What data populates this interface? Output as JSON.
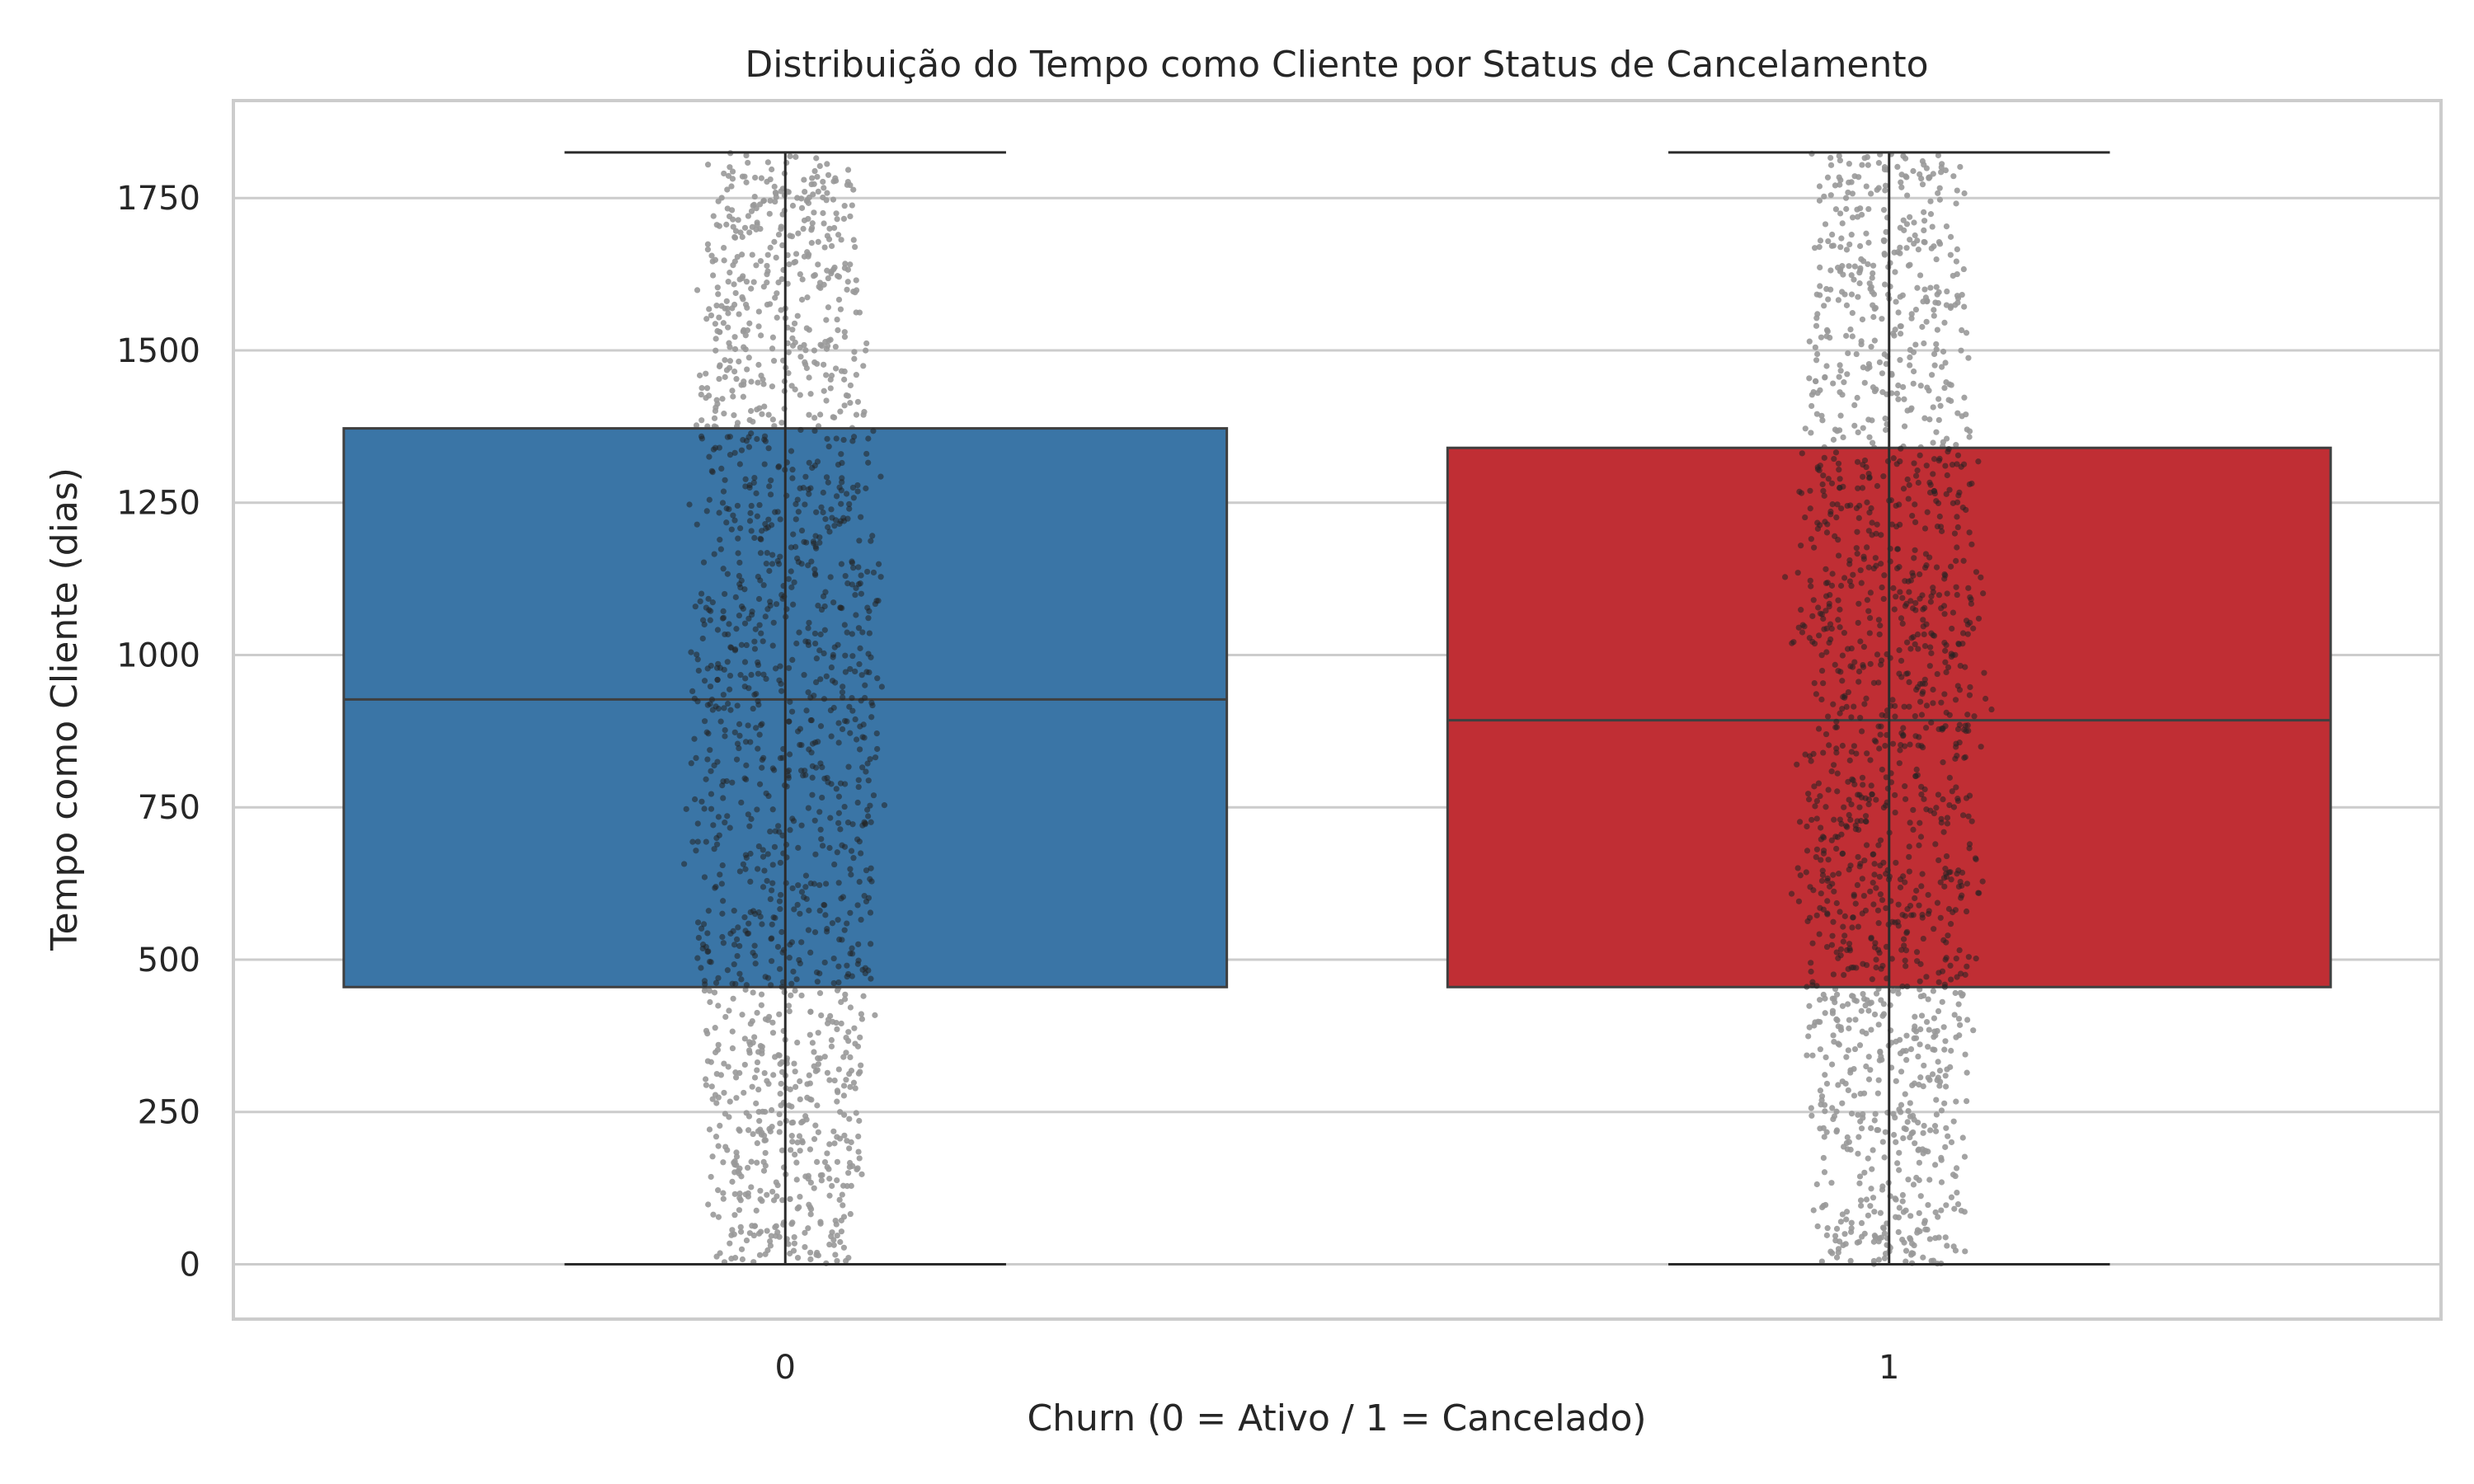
{
  "chart_data": {
    "type": "boxplot",
    "title": "Distribuição do Tempo como Cliente por Status de Cancelamento",
    "xlabel": "Churn (0 = Ativo / 1 = Cancelado)",
    "ylabel": "Tempo como Cliente (dias)",
    "categories": [
      "0",
      "1"
    ],
    "ylim": [
      -90,
      1910
    ],
    "yticks": [
      0,
      250,
      500,
      750,
      1000,
      1250,
      1500,
      1750
    ],
    "grid": true,
    "series": [
      {
        "category": "0",
        "color": "#3a75a6",
        "min": 0,
        "q1": 455,
        "median": 927,
        "q3": 1372,
        "max": 1825
      },
      {
        "category": "1",
        "color": "#c02e34",
        "min": 0,
        "q1": 455,
        "median": 893,
        "q3": 1340,
        "max": 1825
      }
    ],
    "swarm_color": "#999999",
    "swarm_overlay_color": "#222222"
  }
}
